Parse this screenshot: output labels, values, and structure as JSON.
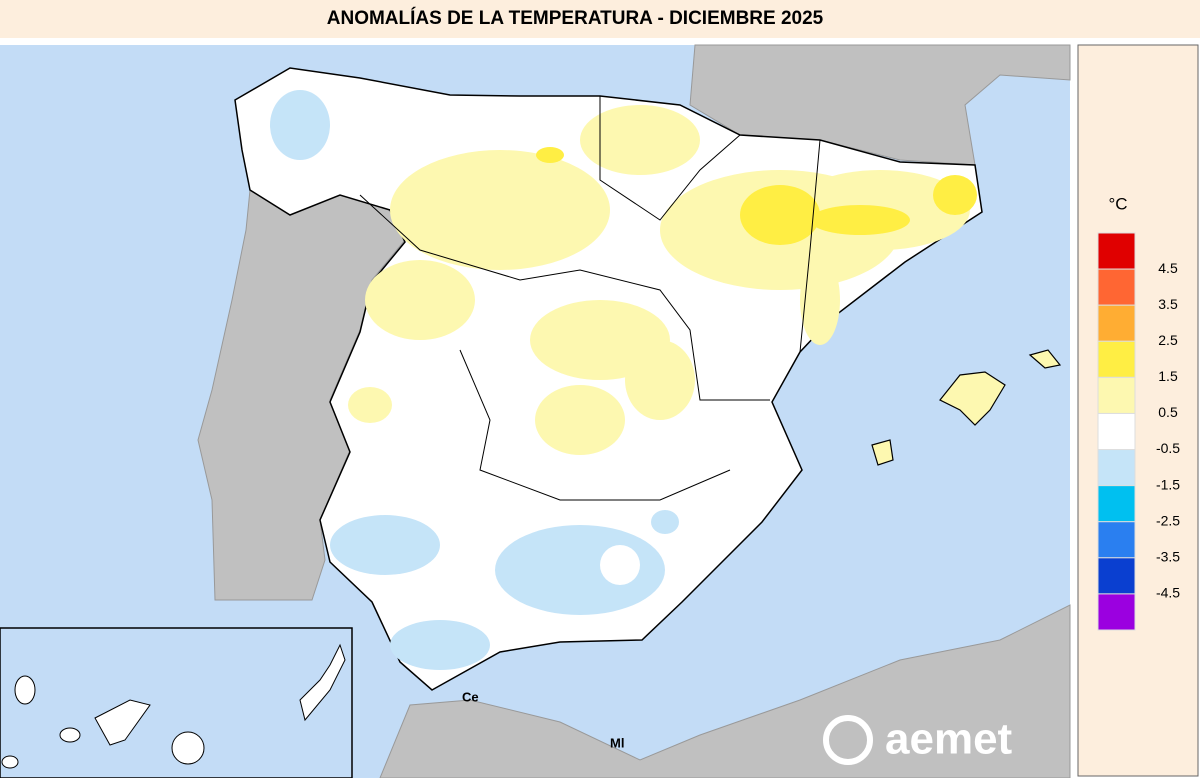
{
  "header": {
    "title": "ANOMALÍAS DE LA TEMPERATURA - DICIEMBRE 2025"
  },
  "legend": {
    "unit": "°C",
    "labels": [
      "4.5",
      "3.5",
      "2.5",
      "1.5",
      "0.5",
      "-0.5",
      "-1.5",
      "-2.5",
      "-3.5",
      "-4.5"
    ],
    "colors": [
      "#e00000",
      "#ff6633",
      "#ffad33",
      "#ffee44",
      "#fdf8b0",
      "#ffffff",
      "#c5e4f8",
      "#00c0f0",
      "#2a7ff0",
      "#0a3fd0",
      "#9b00e0"
    ]
  },
  "map": {
    "places": [
      "Ce",
      "Ml"
    ],
    "logo": "aemet"
  }
}
